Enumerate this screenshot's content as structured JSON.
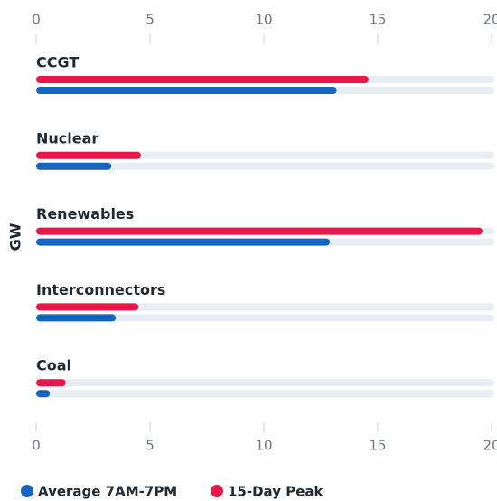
{
  "chart_data": {
    "type": "bar",
    "orientation": "horizontal",
    "y_axis_label": "GW",
    "categories": [
      "CCGT",
      "Nuclear",
      "Renewables",
      "Interconnectors",
      "Coal"
    ],
    "series": [
      {
        "name": "Average 7AM-7PM",
        "color": "#1565c0",
        "values": [
          13.2,
          3.3,
          12.9,
          3.5,
          0.6
        ]
      },
      {
        "name": "15-Day Peak",
        "color": "#e8174a",
        "values": [
          14.6,
          4.6,
          19.6,
          4.5,
          1.3
        ]
      }
    ],
    "xlim": [
      0,
      20
    ],
    "xticks": [
      0,
      5,
      10,
      15,
      20
    ]
  }
}
